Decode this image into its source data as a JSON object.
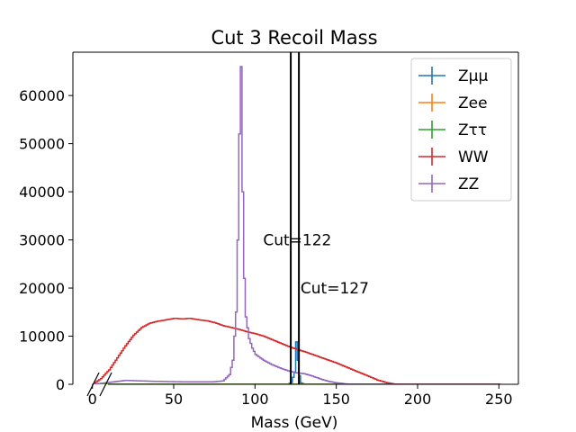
{
  "chart_data": {
    "type": "line",
    "title": "Cut 3 Recoil Mass",
    "xlabel": "Mass (GeV)",
    "ylabel": "",
    "xlim": [
      -12,
      262
    ],
    "ylim": [
      0,
      69000
    ],
    "x_ticks": [
      0,
      50,
      100,
      150,
      200,
      250
    ],
    "y_ticks": [
      0,
      10000,
      20000,
      30000,
      40000,
      50000,
      60000
    ],
    "grid": false,
    "legend_position": "top-right",
    "series": [
      {
        "name": "Zμμ",
        "color": "#1f77b4",
        "x": [
          0,
          120,
          122,
          124,
          125,
          126,
          127,
          128,
          130,
          250
        ],
        "y": [
          0,
          0,
          400,
          2500,
          8800,
          5000,
          1800,
          300,
          0,
          0
        ]
      },
      {
        "name": "Zee",
        "color": "#ff7f0e",
        "x": [
          0,
          250
        ],
        "y": [
          0,
          0
        ]
      },
      {
        "name": "Zττ",
        "color": "#2ca02c",
        "x": [
          0,
          250
        ],
        "y": [
          0,
          0
        ]
      },
      {
        "name": "WW",
        "color": "#d62728",
        "x": [
          0,
          5,
          10,
          15,
          20,
          25,
          30,
          35,
          40,
          45,
          50,
          55,
          60,
          65,
          70,
          75,
          80,
          85,
          90,
          95,
          100,
          105,
          110,
          115,
          120,
          125,
          130,
          135,
          140,
          145,
          150,
          155,
          160,
          165,
          170,
          175,
          180,
          185,
          190,
          195,
          200,
          250
        ],
        "y": [
          0,
          1200,
          3000,
          5500,
          8000,
          10200,
          11800,
          12700,
          13100,
          13400,
          13700,
          13600,
          13700,
          13400,
          13200,
          12800,
          12200,
          11800,
          11400,
          10900,
          10500,
          10000,
          9300,
          8600,
          7900,
          7300,
          6800,
          6200,
          5600,
          5000,
          4400,
          3700,
          3000,
          2300,
          1600,
          900,
          400,
          80,
          0,
          0,
          0,
          0
        ]
      },
      {
        "name": "ZZ",
        "color": "#9467bd",
        "x": [
          0,
          10,
          20,
          30,
          40,
          50,
          60,
          70,
          75,
          80,
          84,
          86,
          88,
          89,
          90,
          91,
          92,
          93,
          94,
          96,
          98,
          100,
          105,
          110,
          115,
          120,
          125,
          130,
          135,
          140,
          145,
          150,
          155,
          160,
          250
        ],
        "y": [
          0,
          400,
          800,
          700,
          600,
          550,
          500,
          500,
          550,
          700,
          2000,
          5000,
          15000,
          30000,
          52000,
          66000,
          40000,
          22000,
          14000,
          9500,
          7500,
          6200,
          5000,
          4100,
          3400,
          2800,
          2400,
          2200,
          1700,
          1100,
          600,
          300,
          100,
          0,
          0
        ]
      }
    ],
    "vlines": [
      {
        "x": 122,
        "label": "Cut=122",
        "label_x": 105,
        "label_y": 30000
      },
      {
        "x": 127,
        "label": "Cut=127",
        "label_x": 128,
        "label_y": 20000
      }
    ]
  }
}
